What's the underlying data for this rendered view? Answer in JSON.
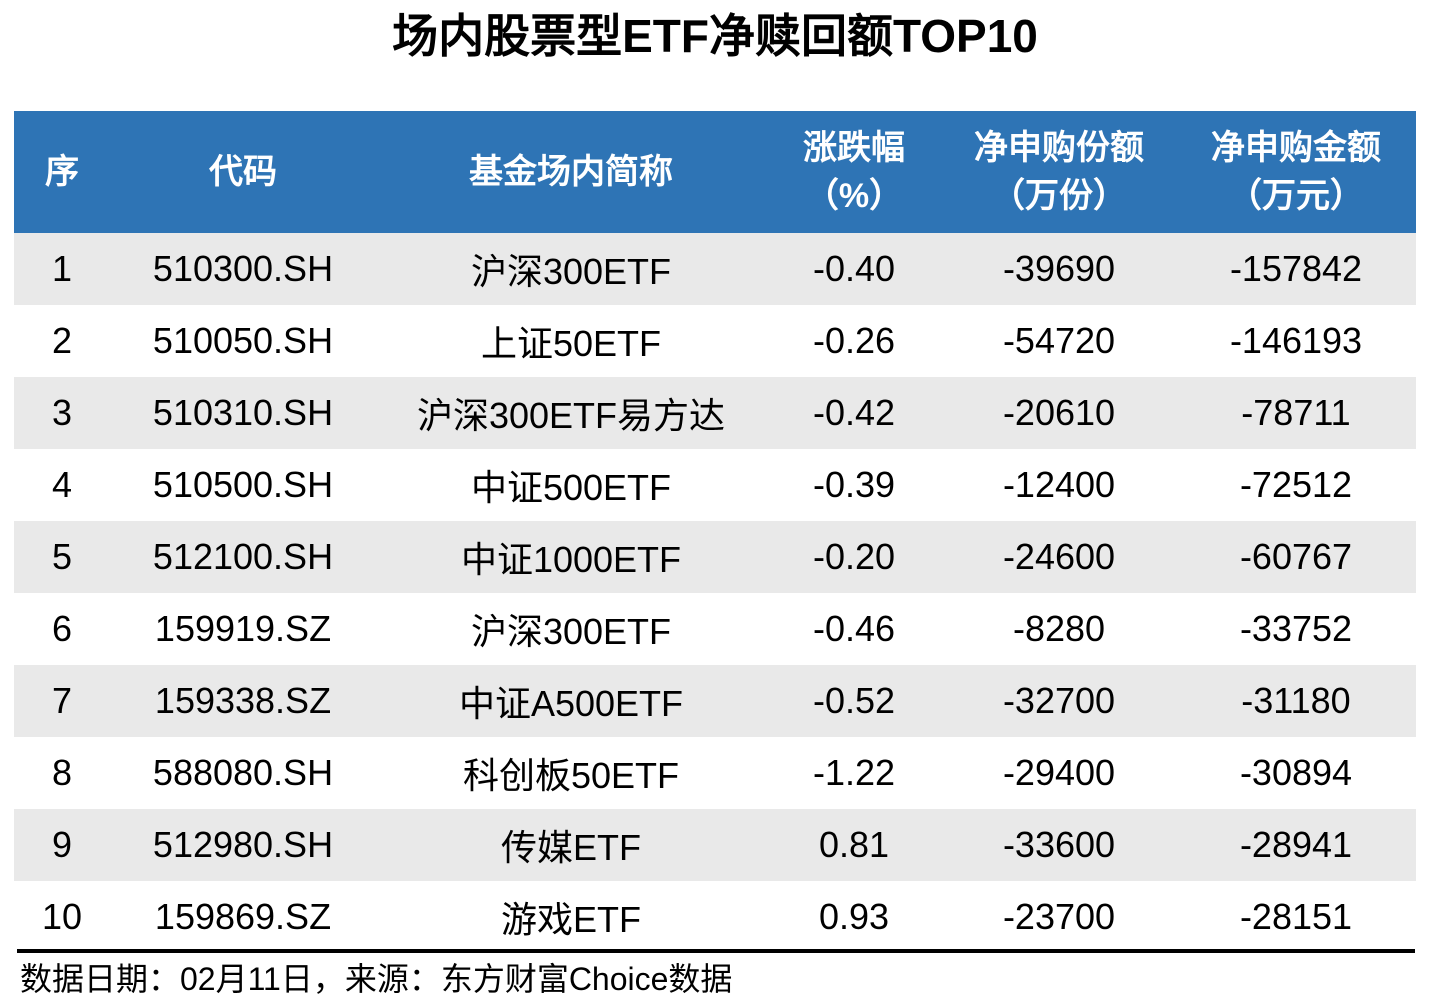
{
  "page": {
    "title": "场内股票型ETF净赎回额TOP10"
  },
  "colors": {
    "header_bg": "#2E74B5",
    "header_text": "#FFFFFF",
    "stripe_bg": "#E9E9E9",
    "row_bg": "#FFFFFF",
    "text": "#000000"
  },
  "table": {
    "columns": [
      {
        "line1": "序",
        "line2": ""
      },
      {
        "line1": "代码",
        "line2": ""
      },
      {
        "line1": "基金场内简称",
        "line2": ""
      },
      {
        "line1": "涨跌幅",
        "line2": "（%）"
      },
      {
        "line1": "净申购份额",
        "line2": "（万份）"
      },
      {
        "line1": "净申购金额",
        "line2": "（万元）"
      }
    ],
    "rows": [
      [
        "1",
        "510300.SH",
        "沪深300ETF",
        "-0.40",
        "-39690",
        "-157842"
      ],
      [
        "2",
        "510050.SH",
        "上证50ETF",
        "-0.26",
        "-54720",
        "-146193"
      ],
      [
        "3",
        "510310.SH",
        "沪深300ETF易方达",
        "-0.42",
        "-20610",
        "-78711"
      ],
      [
        "4",
        "510500.SH",
        "中证500ETF",
        "-0.39",
        "-12400",
        "-72512"
      ],
      [
        "5",
        "512100.SH",
        "中证1000ETF",
        "-0.20",
        "-24600",
        "-60767"
      ],
      [
        "6",
        "159919.SZ",
        "沪深300ETF",
        "-0.46",
        "-8280",
        "-33752"
      ],
      [
        "7",
        "159338.SZ",
        "中证A500ETF",
        "-0.52",
        "-32700",
        "-31180"
      ],
      [
        "8",
        "588080.SH",
        "科创板50ETF",
        "-1.22",
        "-29400",
        "-30894"
      ],
      [
        "9",
        "512980.SH",
        "传媒ETF",
        "0.81",
        "-33600",
        "-28941"
      ],
      [
        "10",
        "159869.SZ",
        "游戏ETF",
        "0.93",
        "-23700",
        "-28151"
      ]
    ]
  },
  "footer": {
    "note": "数据日期：02月11日，来源：东方财富Choice数据"
  },
  "chart_data": {
    "type": "table",
    "title": "场内股票型ETF净赎回额TOP10",
    "columns": [
      "序",
      "代码",
      "基金场内简称",
      "涨跌幅（%）",
      "净申购份额（万份）",
      "净申购金额（万元）"
    ],
    "rows": [
      [
        1,
        "510300.SH",
        "沪深300ETF",
        -0.4,
        -39690,
        -157842
      ],
      [
        2,
        "510050.SH",
        "上证50ETF",
        -0.26,
        -54720,
        -146193
      ],
      [
        3,
        "510310.SH",
        "沪深300ETF易方达",
        -0.42,
        -20610,
        -78711
      ],
      [
        4,
        "510500.SH",
        "中证500ETF",
        -0.39,
        -12400,
        -72512
      ],
      [
        5,
        "512100.SH",
        "中证1000ETF",
        -0.2,
        -24600,
        -60767
      ],
      [
        6,
        "159919.SZ",
        "沪深300ETF",
        -0.46,
        -8280,
        -33752
      ],
      [
        7,
        "159338.SZ",
        "中证A500ETF",
        -0.52,
        -32700,
        -31180
      ],
      [
        8,
        "588080.SH",
        "科创板50ETF",
        -1.22,
        -29400,
        -30894
      ],
      [
        9,
        "512980.SH",
        "传媒ETF",
        0.81,
        -33600,
        -28941
      ],
      [
        10,
        "159869.SZ",
        "游戏ETF",
        0.93,
        -23700,
        -28151
      ]
    ],
    "source_note": "数据日期：02月11日，来源：东方财富Choice数据"
  }
}
